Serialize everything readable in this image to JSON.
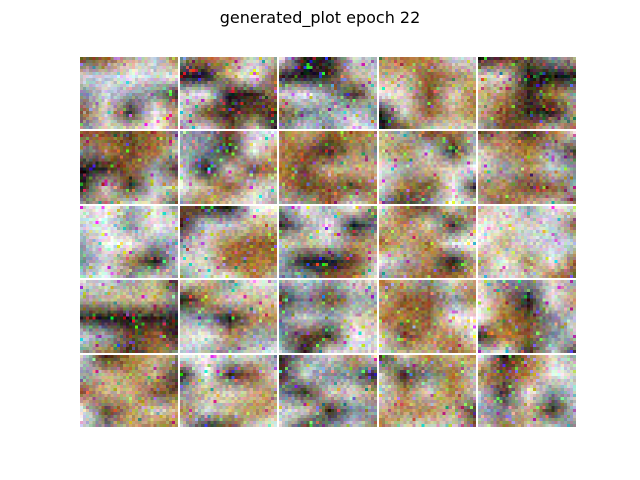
{
  "title": "generated_plot epoch 22",
  "grid": {
    "rows": 5,
    "cols": 5
  },
  "palette": [
    "#f2f2ee",
    "#d8d2c4",
    "#c9b48a",
    "#b08a5a",
    "#8a5a32",
    "#6b4a2c",
    "#3a2c22",
    "#1c1a1c",
    "#9aa4ac",
    "#7c8894",
    "#c8d0d8",
    "#a87838"
  ],
  "tiles": [
    {
      "id": "r1c1",
      "seed": 11,
      "tone": "light"
    },
    {
      "id": "r1c2",
      "seed": 12,
      "tone": "mixed"
    },
    {
      "id": "r1c3",
      "seed": 13,
      "tone": "grey"
    },
    {
      "id": "r1c4",
      "seed": 14,
      "tone": "warm"
    },
    {
      "id": "r1c5",
      "seed": 15,
      "tone": "dark"
    },
    {
      "id": "r2c1",
      "seed": 21,
      "tone": "dark"
    },
    {
      "id": "r2c2",
      "seed": 22,
      "tone": "light"
    },
    {
      "id": "r2c3",
      "seed": 23,
      "tone": "warm"
    },
    {
      "id": "r2c4",
      "seed": 24,
      "tone": "mixed"
    },
    {
      "id": "r2c5",
      "seed": 25,
      "tone": "dark"
    },
    {
      "id": "r3c1",
      "seed": 31,
      "tone": "light"
    },
    {
      "id": "r3c2",
      "seed": 32,
      "tone": "mixed"
    },
    {
      "id": "r3c3",
      "seed": 33,
      "tone": "grey"
    },
    {
      "id": "r3c4",
      "seed": 34,
      "tone": "warm"
    },
    {
      "id": "r3c5",
      "seed": 35,
      "tone": "light"
    },
    {
      "id": "r4c1",
      "seed": 41,
      "tone": "dark"
    },
    {
      "id": "r4c2",
      "seed": 42,
      "tone": "light"
    },
    {
      "id": "r4c3",
      "seed": 43,
      "tone": "grey"
    },
    {
      "id": "r4c4",
      "seed": 44,
      "tone": "warm"
    },
    {
      "id": "r4c5",
      "seed": 45,
      "tone": "mixed"
    },
    {
      "id": "r5c1",
      "seed": 51,
      "tone": "warm"
    },
    {
      "id": "r5c2",
      "seed": 52,
      "tone": "light"
    },
    {
      "id": "r5c3",
      "seed": 53,
      "tone": "grey"
    },
    {
      "id": "r5c4",
      "seed": 54,
      "tone": "warm"
    },
    {
      "id": "r5c5",
      "seed": 55,
      "tone": "light"
    }
  ]
}
